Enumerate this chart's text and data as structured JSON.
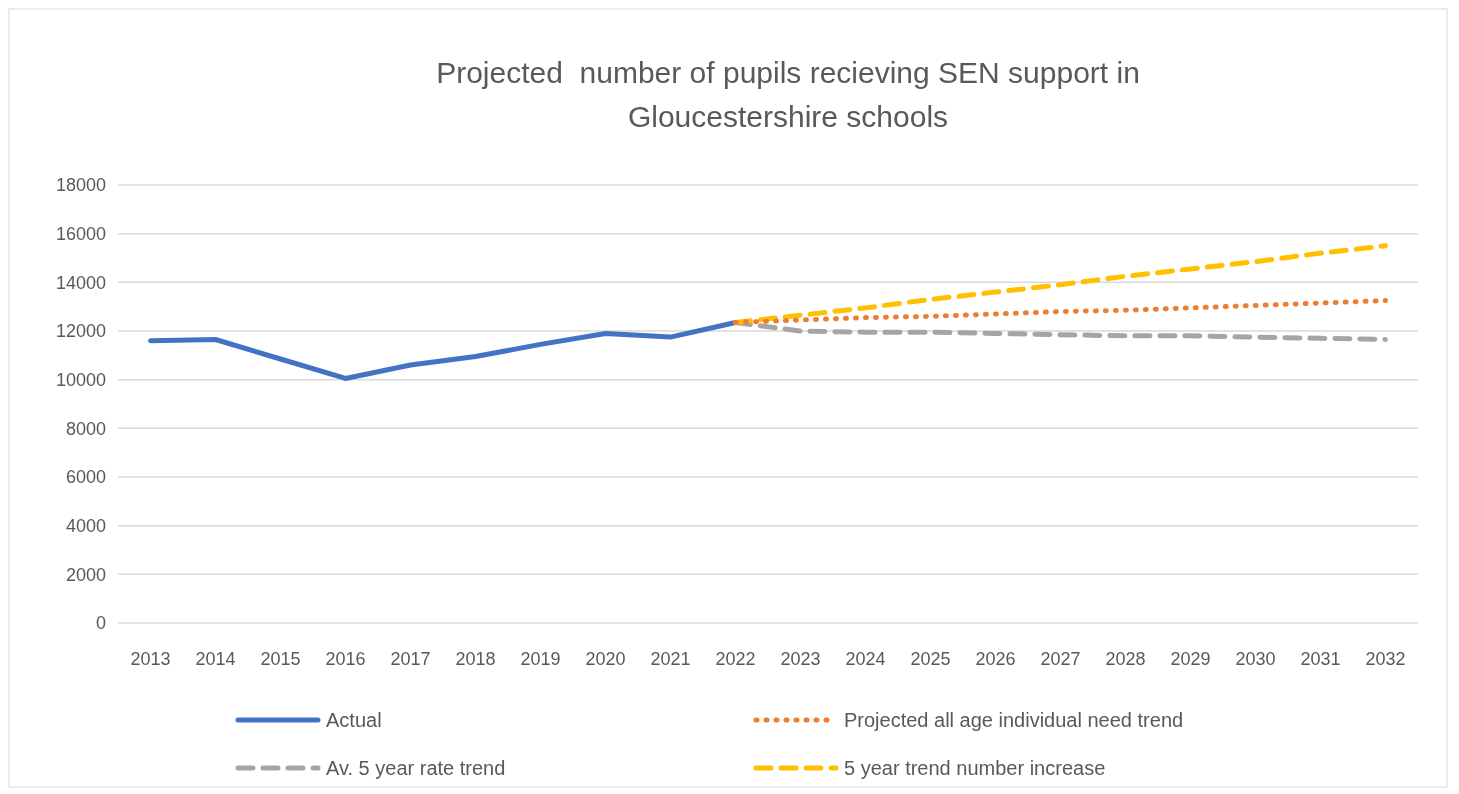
{
  "chart_data": {
    "type": "line",
    "title": "Projected  number of pupils recieving SEN support in Gloucestershire schools",
    "categories": [
      "2013",
      "2014",
      "2015",
      "2016",
      "2017",
      "2018",
      "2019",
      "2020",
      "2021",
      "2022",
      "2023",
      "2024",
      "2025",
      "2026",
      "2027",
      "2028",
      "2029",
      "2030",
      "2031",
      "2032"
    ],
    "series": [
      {
        "name": "Actual",
        "color": "#4472c4",
        "line_style": "solid",
        "values": [
          11600,
          11650,
          10850,
          10050,
          10600,
          10950,
          11450,
          11900,
          11750,
          12350,
          null,
          null,
          null,
          null,
          null,
          null,
          null,
          null,
          null,
          null
        ]
      },
      {
        "name": "Projected all age individual need trend",
        "color": "#ed7d31",
        "line_style": "dotted",
        "values": [
          null,
          null,
          null,
          null,
          null,
          null,
          null,
          null,
          null,
          12350,
          12450,
          12550,
          12600,
          12700,
          12800,
          12850,
          12950,
          13050,
          13150,
          13250
        ]
      },
      {
        "name": "Av. 5 year rate trend",
        "color": "#a5a5a5",
        "line_style": "dashed",
        "values": [
          null,
          null,
          null,
          null,
          null,
          null,
          null,
          null,
          null,
          12350,
          12000,
          11950,
          11950,
          11900,
          11850,
          11800,
          11800,
          11750,
          11700,
          11650
        ]
      },
      {
        "name": "5 year trend number increase",
        "color": "#ffc000",
        "line_style": "dashed",
        "values": [
          null,
          null,
          null,
          null,
          null,
          null,
          null,
          null,
          null,
          12350,
          12650,
          12950,
          13300,
          13600,
          13900,
          14250,
          14550,
          14850,
          15200,
          15500
        ]
      }
    ],
    "ylim": [
      0,
      18000
    ],
    "yticks": [
      0,
      2000,
      4000,
      6000,
      8000,
      10000,
      12000,
      14000,
      16000,
      18000
    ],
    "grid": "y",
    "legend": "bottom",
    "marker": "none"
  }
}
